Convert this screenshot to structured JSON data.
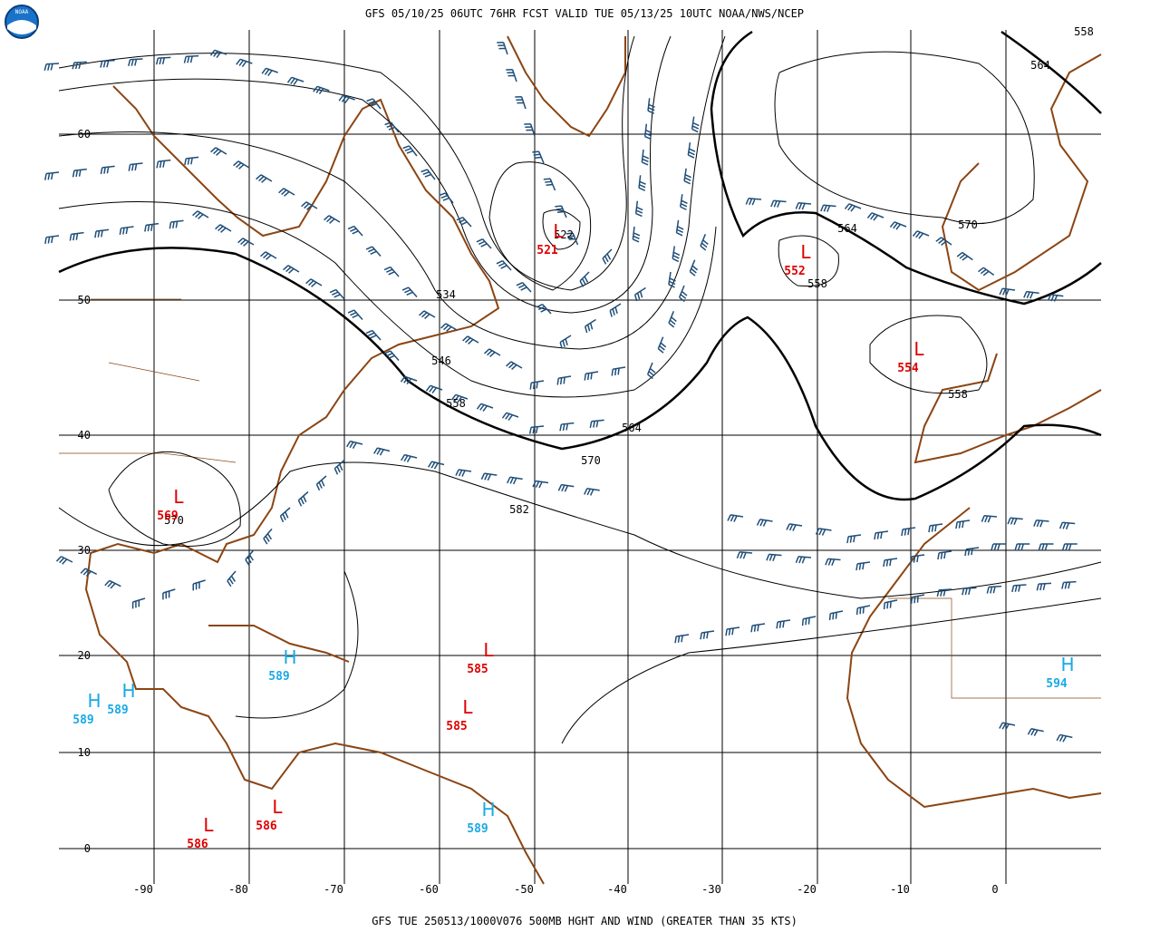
{
  "header": {
    "title": "GFS 05/10/25 06UTC 76HR FCST VALID TUE 05/13/25 10UTC NOAA/NWS/NCEP",
    "logo": "NOAA"
  },
  "footer": "GFS TUE 250513/1000V076 500MB HGHT AND WIND (GREATER THAN 35 KTS)",
  "lat_labels": [
    "60",
    "50",
    "40",
    "30",
    "20",
    "10",
    "0"
  ],
  "lon_labels": [
    "-90",
    "-80",
    "-70",
    "-60",
    "-50",
    "-40",
    "-30",
    "-20",
    "-10",
    "0"
  ],
  "contour_labels": [
    "522",
    "534",
    "546",
    "558",
    "564",
    "570",
    "582",
    "570",
    "564",
    "558",
    "558",
    "564",
    "558",
    "570"
  ],
  "centers": [
    {
      "letter": "L",
      "value": "521"
    },
    {
      "letter": "L",
      "value": "552"
    },
    {
      "letter": "L",
      "value": "554"
    },
    {
      "letter": "L",
      "value": "569"
    },
    {
      "letter": "L",
      "value": "585"
    },
    {
      "letter": "L",
      "value": "585"
    },
    {
      "letter": "L",
      "value": "586"
    },
    {
      "letter": "L",
      "value": "586"
    },
    {
      "letter": "H",
      "value": "589"
    },
    {
      "letter": "H",
      "value": "589"
    },
    {
      "letter": "H",
      "value": "589"
    },
    {
      "letter": "H",
      "value": "594"
    },
    {
      "letter": "H",
      "value": "589"
    }
  ]
}
